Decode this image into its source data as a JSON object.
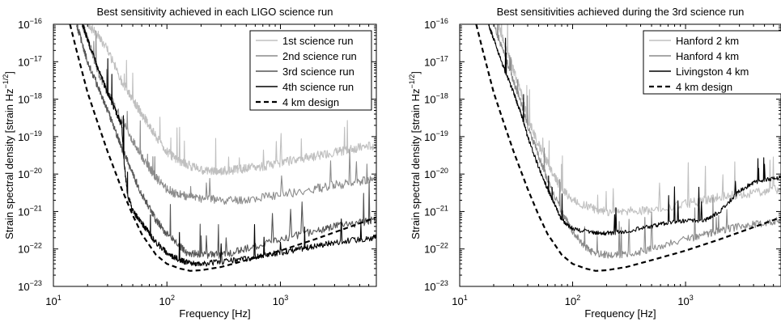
{
  "chart_data": [
    {
      "type": "line",
      "title": "Best sensitivity achieved in each LIGO science run",
      "xlabel": "Frequency [Hz]",
      "ylabel_main": "Strain spectral density [strain Hz",
      "ylabel_exp": "−1/2",
      "ylabel_close": "]",
      "x_scale": "log",
      "y_scale": "log",
      "xlim": [
        10,
        7000
      ],
      "ylim": [
        1e-23,
        1e-16
      ],
      "x_ticks": [
        {
          "value": 10,
          "base": "10",
          "exp": "1"
        },
        {
          "value": 100,
          "base": "10",
          "exp": "2"
        },
        {
          "value": 1000,
          "base": "10",
          "exp": "3"
        }
      ],
      "y_ticks": [
        {
          "value": 1e-16,
          "base": "10",
          "exp": "−16"
        },
        {
          "value": 1e-17,
          "base": "10",
          "exp": "−17"
        },
        {
          "value": 1e-18,
          "base": "10",
          "exp": "−18"
        },
        {
          "value": 1e-19,
          "base": "10",
          "exp": "−19"
        },
        {
          "value": 1e-20,
          "base": "10",
          "exp": "−20"
        },
        {
          "value": 1e-21,
          "base": "10",
          "exp": "−21"
        },
        {
          "value": 1e-22,
          "base": "10",
          "exp": "−22"
        },
        {
          "value": 1e-23,
          "base": "10",
          "exp": "−23"
        }
      ],
      "legend_position": "top-right",
      "series": [
        {
          "name": "1st science run",
          "color": "#c0c0c0",
          "dash": "solid",
          "noise": 0.12,
          "x": [
            20,
            25,
            30,
            40,
            50,
            60,
            70,
            80,
            100,
            120,
            150,
            200,
            250,
            300,
            400,
            500,
            700,
            1000,
            1500,
            2000,
            3000,
            4000,
            5000,
            7000
          ],
          "y": [
            1e-16,
            5e-17,
            2e-17,
            3e-18,
            1e-18,
            4e-19,
            2e-19,
            1e-19,
            4e-20,
            2.5e-20,
            1.8e-20,
            1.3e-20,
            1.2e-20,
            1.2e-20,
            1.3e-20,
            1.4e-20,
            1.6e-20,
            2e-20,
            2.6e-20,
            3e-20,
            3.8e-20,
            4.5e-20,
            5e-20,
            6e-20
          ]
        },
        {
          "name": "2nd science run",
          "color": "#8c8c8c",
          "dash": "solid",
          "noise": 0.12,
          "x": [
            18,
            20,
            25,
            30,
            40,
            50,
            60,
            70,
            80,
            100,
            120,
            150,
            200,
            300,
            500,
            1000,
            2000,
            3000,
            5000,
            7000
          ],
          "y": [
            1e-16,
            4e-17,
            5e-18,
            1.5e-18,
            3e-19,
            8e-20,
            3e-20,
            1.5e-20,
            8e-21,
            4e-21,
            3e-21,
            2.5e-21,
            2.2e-21,
            2e-21,
            2.1e-21,
            2.8e-21,
            4e-21,
            5e-21,
            6.5e-21,
            8e-21
          ]
        },
        {
          "name": "3rd science run",
          "color": "#555555",
          "dash": "solid",
          "noise": 0.1,
          "x": [
            16,
            20,
            25,
            30,
            35,
            40,
            50,
            60,
            80,
            100,
            130,
            150,
            200,
            300,
            500,
            1000,
            2000,
            3000,
            5000,
            7000
          ],
          "y": [
            1e-16,
            1e-17,
            2e-18,
            5e-19,
            1.5e-19,
            5e-20,
            1e-20,
            3e-21,
            6e-22,
            2.5e-22,
            1.2e-22,
            8e-23,
            7e-23,
            7e-23,
            1e-22,
            1.8e-22,
            3e-22,
            4e-22,
            5e-22,
            6e-22
          ]
        },
        {
          "name": "4th science run",
          "color": "#000000",
          "dash": "solid",
          "noise": 0.08,
          "x": [
            18,
            20,
            25,
            30,
            35,
            40,
            42,
            45,
            50,
            60,
            70,
            80,
            100,
            130,
            150,
            200,
            300,
            500,
            700,
            1000,
            1500,
            2000,
            3000,
            5000,
            7000
          ],
          "y": [
            1e-16,
            4e-17,
            6e-18,
            1.5e-18,
            5e-19,
            2e-19,
            2e-20,
            3e-21,
            1e-21,
            5e-22,
            2.6e-22,
            1.5e-22,
            8e-23,
            5e-23,
            4.5e-23,
            4e-23,
            4.5e-23,
            5.5e-23,
            6.5e-23,
            8e-23,
            1e-22,
            1.2e-22,
            1.5e-22,
            1.8e-22,
            2e-22
          ]
        },
        {
          "name": "4 km design",
          "color": "#000000",
          "dash": "dashed",
          "noise": 0,
          "x": [
            14,
            16,
            20,
            25,
            30,
            40,
            50,
            60,
            80,
            100,
            130,
            160,
            200,
            300,
            500,
            1000,
            2000,
            4000,
            7000
          ],
          "y": [
            1e-16,
            2e-17,
            1.5e-18,
            2e-19,
            4e-20,
            4e-21,
            8e-22,
            2.5e-22,
            7e-23,
            4e-23,
            3e-23,
            2.6e-23,
            2.7e-23,
            3.3e-23,
            5e-23,
            9e-23,
            1.8e-22,
            3.8e-22,
            7e-22
          ]
        }
      ]
    },
    {
      "type": "line",
      "title": "Best sensitivities achieved during the 3rd science run",
      "xlabel": "Frequency [Hz]",
      "ylabel_main": "Strain spectral density [strain Hz",
      "ylabel_exp": "−1/2",
      "ylabel_close": "]",
      "x_scale": "log",
      "y_scale": "log",
      "xlim": [
        10,
        7000
      ],
      "ylim": [
        1e-23,
        1e-16
      ],
      "x_ticks": [
        {
          "value": 10,
          "base": "10",
          "exp": "1"
        },
        {
          "value": 100,
          "base": "10",
          "exp": "2"
        },
        {
          "value": 1000,
          "base": "10",
          "exp": "3"
        }
      ],
      "y_ticks": [
        {
          "value": 1e-16,
          "base": "10",
          "exp": "−16"
        },
        {
          "value": 1e-17,
          "base": "10",
          "exp": "−17"
        },
        {
          "value": 1e-18,
          "base": "10",
          "exp": "−18"
        },
        {
          "value": 1e-19,
          "base": "10",
          "exp": "−19"
        },
        {
          "value": 1e-20,
          "base": "10",
          "exp": "−20"
        },
        {
          "value": 1e-21,
          "base": "10",
          "exp": "−21"
        },
        {
          "value": 1e-22,
          "base": "10",
          "exp": "−22"
        },
        {
          "value": 1e-23,
          "base": "10",
          "exp": "−23"
        }
      ],
      "legend_position": "top-right",
      "series": [
        {
          "name": "Hanford 2 km",
          "color": "#c0c0c0",
          "dash": "solid",
          "noise": 0.12,
          "x": [
            22,
            25,
            30,
            35,
            40,
            50,
            60,
            70,
            80,
            100,
            150,
            200,
            300,
            500,
            1000,
            1500,
            2000,
            3000,
            5000,
            7000
          ],
          "y": [
            1e-16,
            3e-17,
            6e-18,
            1.5e-18,
            3e-19,
            6e-20,
            2e-20,
            8e-21,
            4e-21,
            2e-21,
            1.2e-21,
            1e-21,
            1e-21,
            1.1e-21,
            1.6e-21,
            2e-21,
            2.4e-21,
            2.8e-21,
            3.5e-21,
            4e-21
          ]
        },
        {
          "name": "Hanford 4 km",
          "color": "#8c8c8c",
          "dash": "solid",
          "noise": 0.1,
          "x": [
            20,
            25,
            30,
            35,
            40,
            50,
            60,
            80,
            100,
            130,
            150,
            200,
            300,
            500,
            1000,
            1500,
            2000,
            3000,
            5000,
            7000
          ],
          "y": [
            1e-16,
            1.5e-17,
            3e-18,
            8e-19,
            2e-19,
            3e-20,
            7e-21,
            1e-21,
            3e-22,
            1.1e-22,
            8e-23,
            7e-23,
            7e-23,
            1e-22,
            1.8e-22,
            2.5e-22,
            3e-22,
            4e-22,
            5e-22,
            6e-22
          ]
        },
        {
          "name": "Livingston 4 km",
          "color": "#000000",
          "dash": "solid",
          "noise": 0.06,
          "x": [
            18,
            20,
            25,
            30,
            35,
            40,
            50,
            60,
            70,
            80,
            100,
            150,
            200,
            300,
            500,
            700,
            1000,
            1500,
            2000,
            3000,
            4000,
            5000,
            7000
          ],
          "y": [
            1e-16,
            4e-17,
            6e-18,
            1.5e-18,
            4e-19,
            1e-19,
            1.5e-20,
            4e-21,
            1.5e-21,
            6e-22,
            3.5e-22,
            2.8e-22,
            2.6e-22,
            3e-22,
            4e-22,
            5e-22,
            5.5e-22,
            6e-22,
            1e-21,
            3.5e-21,
            6e-21,
            7e-21,
            8e-21
          ]
        },
        {
          "name": "4 km design",
          "color": "#000000",
          "dash": "dashed",
          "noise": 0,
          "x": [
            14,
            16,
            20,
            25,
            30,
            40,
            50,
            60,
            80,
            100,
            130,
            160,
            200,
            300,
            500,
            1000,
            2000,
            4000,
            7000
          ],
          "y": [
            1e-16,
            2e-17,
            1.5e-18,
            2e-19,
            4e-20,
            4e-21,
            8e-22,
            2.5e-22,
            7e-23,
            4e-23,
            3e-23,
            2.6e-23,
            2.7e-23,
            3.3e-23,
            5e-23,
            9e-23,
            1.8e-22,
            3.8e-22,
            7e-22
          ]
        }
      ]
    }
  ]
}
